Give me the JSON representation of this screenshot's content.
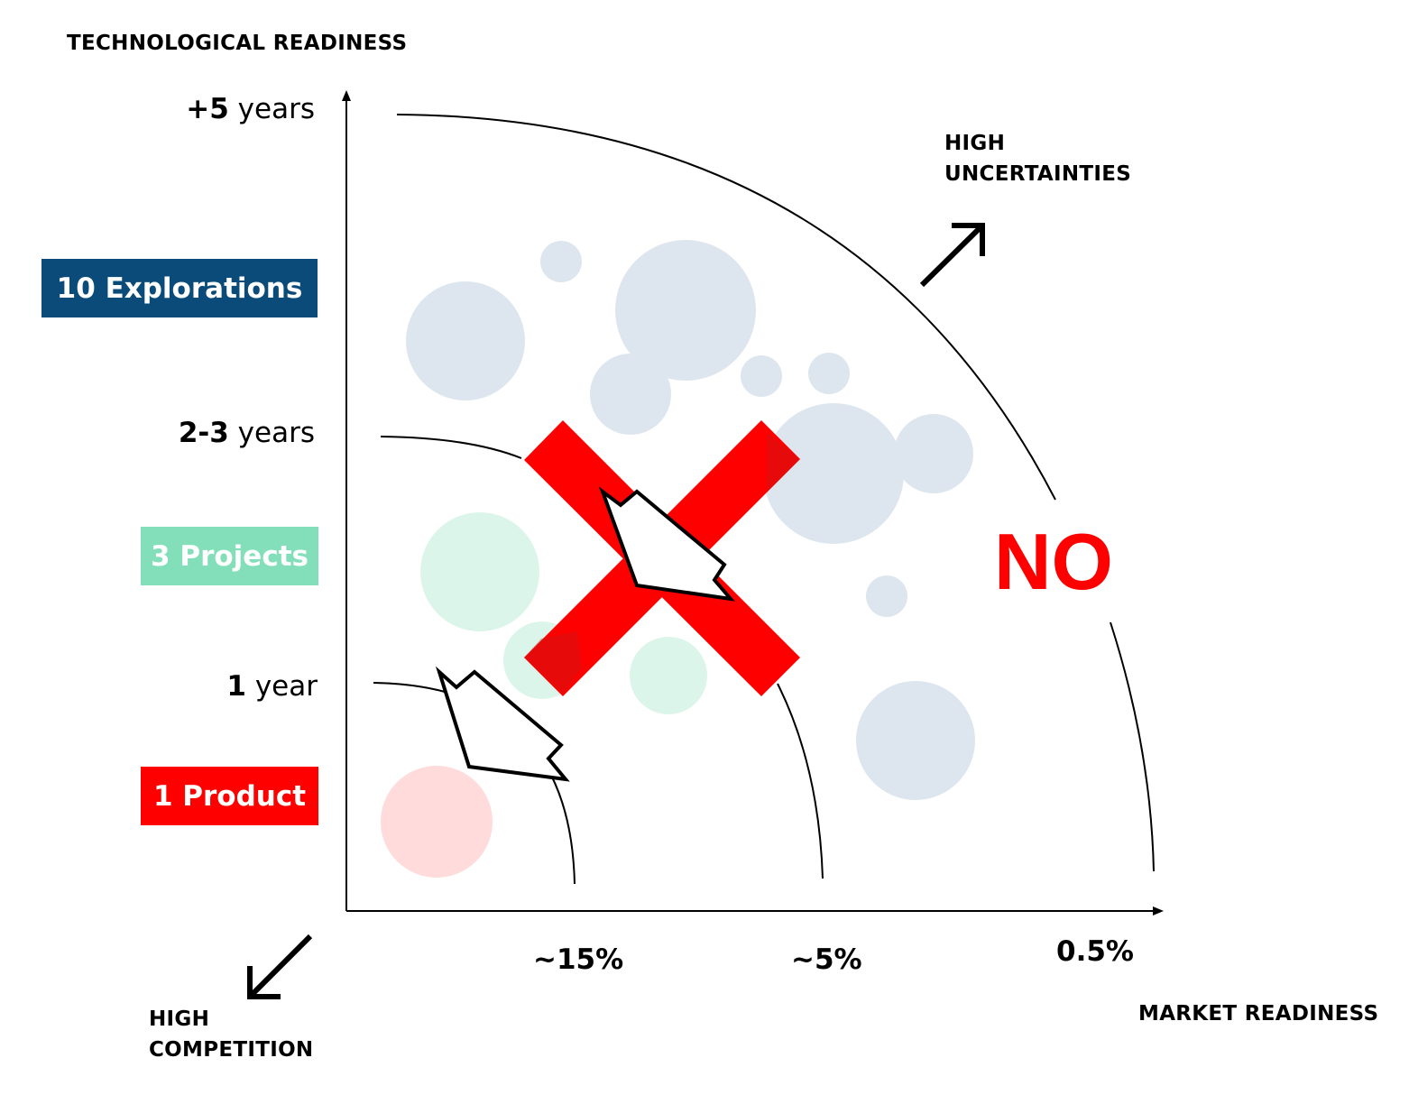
{
  "axes": {
    "y_title": "TECHNOLOGICAL READINESS",
    "x_title": "MARKET READINESS"
  },
  "y_ticks": [
    {
      "bold": "+5",
      "rest": " years"
    },
    {
      "bold": "2-3",
      "rest": " years"
    },
    {
      "bold": "1",
      "rest": " year"
    }
  ],
  "x_ticks": [
    "~15%",
    "~5%",
    "0.5%"
  ],
  "badges": [
    {
      "label": "10 Explorations",
      "color": "#0b4b7a"
    },
    {
      "label": "3 Projects",
      "color": "#82dfb9"
    },
    {
      "label": "1 Product",
      "color": "#ff0000"
    }
  ],
  "corner_labels": {
    "top_right": "HIGH\nUNCERTAINTIES",
    "bottom_left": "HIGH\nCOMPETITION"
  },
  "verdict": {
    "text": "NO",
    "color": "#ff0000"
  },
  "colors": {
    "explorations_bubble": "#dde6ee",
    "projects_bubble": "#dcf5ea",
    "product_bubble": "#ffdbdb",
    "cross": "#ff0000"
  },
  "icons": [
    "up-right-arrow-icon",
    "down-left-arrow-icon",
    "cross-icon",
    "cursor-arrow-icon"
  ]
}
